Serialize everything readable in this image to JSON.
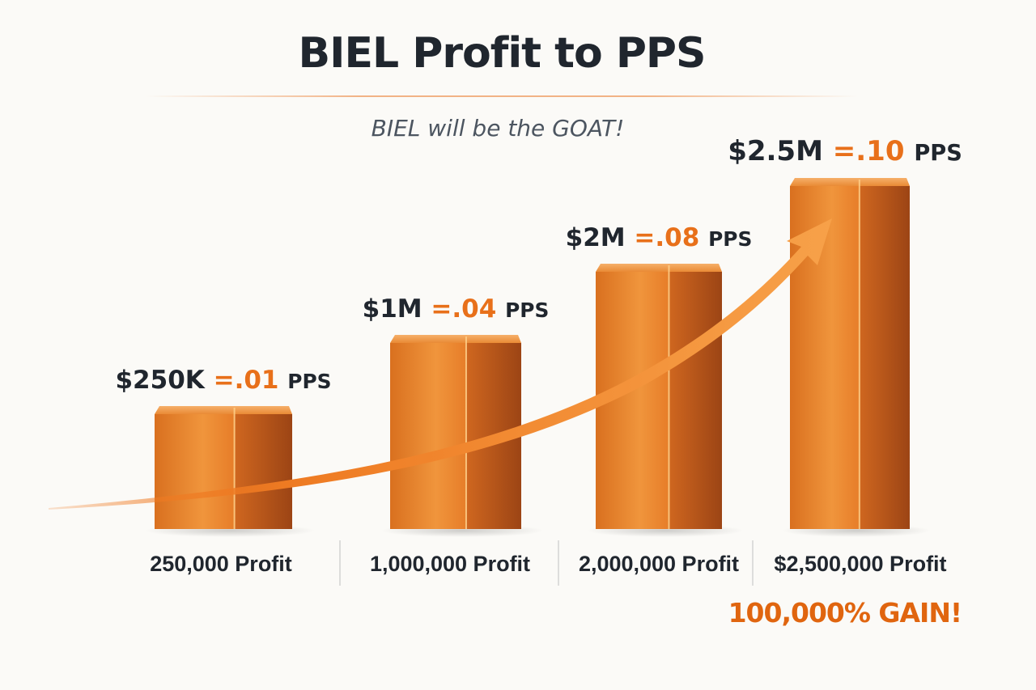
{
  "header": {
    "title": "BIEL Profit to PPS",
    "subtitle": "BIEL will be the GOAT!"
  },
  "footer": {
    "gain_text": "100,000% GAIN!"
  },
  "colors": {
    "accent": "#e8701a",
    "text": "#20262e",
    "bar_light": "#f3a04a",
    "bar_dark": "#b8531a"
  },
  "chart_data": {
    "type": "bar",
    "title": "BIEL Profit to PPS",
    "subtitle": "BIEL will be the GOAT!",
    "categories": [
      "250,000 Profit",
      "1,000,000 Profit",
      "2,000,000 Profit",
      "$2,500,000 Profit"
    ],
    "profit_values": [
      250000,
      1000000,
      2000000,
      2500000
    ],
    "pps_values": [
      0.01,
      0.04,
      0.08,
      0.1
    ],
    "labels": [
      {
        "amount": "$250K",
        "eq": "=",
        "pps": ".01",
        "unit": "PPS"
      },
      {
        "amount": "$1M",
        "eq": "=",
        "pps": ".04",
        "unit": "PPS"
      },
      {
        "amount": "$2M",
        "eq": "=",
        "pps": ".08",
        "unit": "PPS"
      },
      {
        "amount": "$2.5M",
        "eq": "=",
        "pps": ".10",
        "unit": "PPS"
      }
    ],
    "trend_arrow": true,
    "grid": false
  }
}
